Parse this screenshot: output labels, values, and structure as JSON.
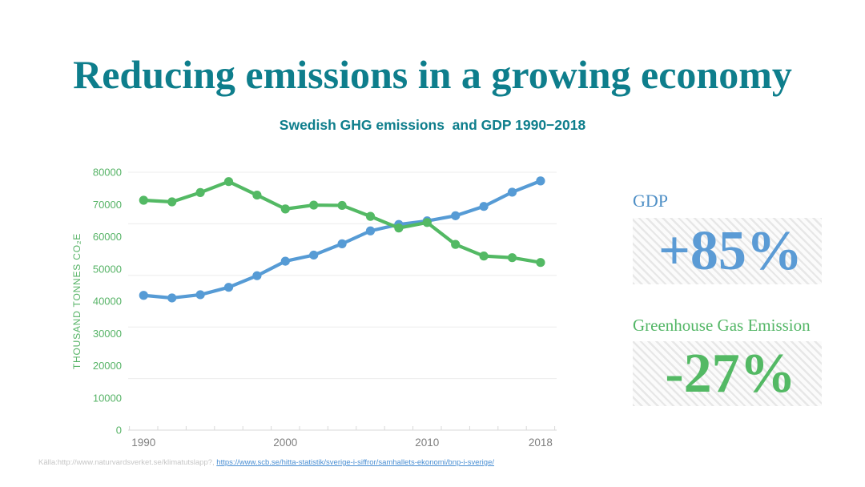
{
  "slide": {
    "title": "Reducing emissions in a growing economy",
    "source_prefix": "Källa:http://www.naturvardsverket.se/klimatutslapp?, ",
    "source_link": "https://www.scb.se/hitta-statistik/sverige-i-siffror/samhallets-ekonomi/bnp-i-sverige/"
  },
  "stats": {
    "gdp_label": "GDP",
    "gdp_change": "+85%",
    "ghg_label": "Greenhouse Gas Emission",
    "ghg_change": "-27%"
  },
  "colors": {
    "teal": "#0e7e8c",
    "green": "#53b964",
    "blue": "#569bd5",
    "grid": "#ececec",
    "axis": "#d8d8d8",
    "x_label": "#7f7f7f",
    "y_label": "#56b366"
  },
  "chart_data": {
    "type": "line",
    "title": "Swedish GHG emissions  and GDP 1990−2018",
    "ylabel": "THOUSAND TONNES CO₂E",
    "xlabel": "",
    "ylim": [
      0,
      80000
    ],
    "y_ticks": [
      0,
      10000,
      20000,
      30000,
      40000,
      50000,
      60000,
      70000,
      80000
    ],
    "x": [
      1990,
      1992,
      1994,
      1996,
      1998,
      2000,
      2002,
      2004,
      2006,
      2008,
      2010,
      2012,
      2014,
      2016,
      2018
    ],
    "x_tick_labels": [
      "1990",
      "2000",
      "2010",
      "2018"
    ],
    "x_tick_indices": [
      0,
      5,
      10,
      14
    ],
    "grid": "horizontal lines at 0, 16000, 32000, 48000, 64000, 80000",
    "legend_position": "none",
    "series": [
      {
        "name": "GDP",
        "color": "#569bd5",
        "values": [
          41800,
          41000,
          42000,
          44300,
          47900,
          52400,
          54300,
          57800,
          61800,
          63800,
          64900,
          66500,
          69400,
          73800,
          77300
        ]
      },
      {
        "name": "Greenhouse Gas Emissions",
        "color": "#53b964",
        "values": [
          71300,
          70800,
          73700,
          77100,
          72900,
          68600,
          69800,
          69700,
          66300,
          62700,
          64400,
          57600,
          54000,
          53500,
          52000
        ]
      }
    ]
  }
}
